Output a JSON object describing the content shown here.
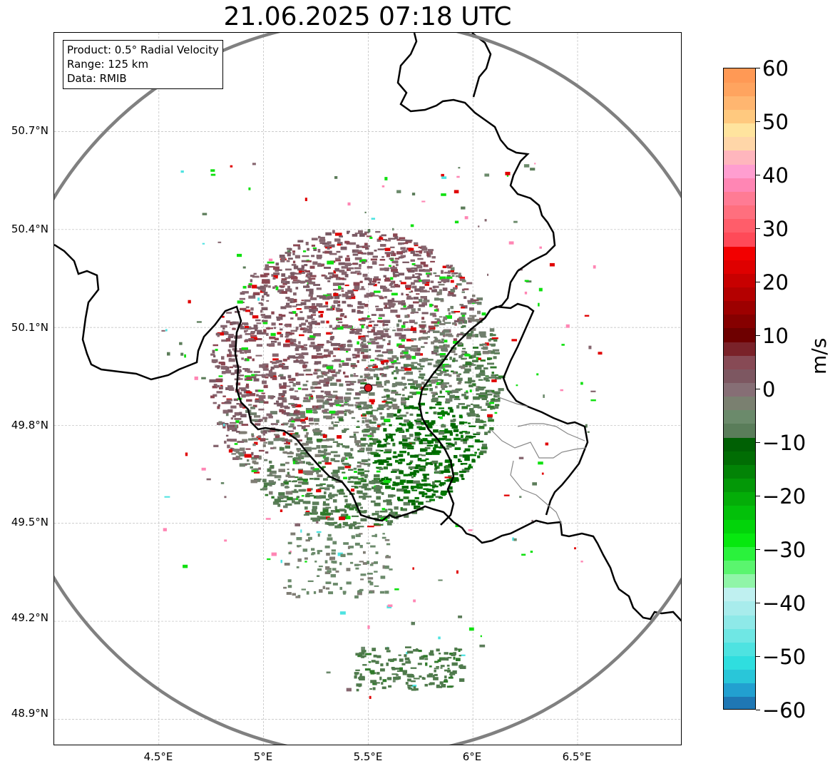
{
  "title": "21.06.2025 07:18 UTC",
  "info": {
    "product": "Product: 0.5° Radial Velocity",
    "range": "Range: 125 km",
    "data": "Data: RMIB"
  },
  "map": {
    "x_ticks": [
      "4.5°E",
      "5°E",
      "5.5°E",
      "6°E",
      "6.5°E"
    ],
    "y_ticks": [
      "50.7°N",
      "50.4°N",
      "50.1°N",
      "49.8°N",
      "49.5°N",
      "49.2°N",
      "48.9°N"
    ],
    "lon_range": [
      4.0,
      7.0
    ],
    "lat_range": [
      48.8,
      51.0
    ],
    "radar_site": {
      "lon": 5.5,
      "lat": 49.915
    },
    "range_ring_color": "#808080",
    "site_marker_color": "#e0141c"
  },
  "colorbar": {
    "label": "m/s",
    "ticks": [
      "60",
      "50",
      "40",
      "30",
      "20",
      "10",
      "0",
      "−10",
      "−20",
      "−30",
      "−40",
      "−50",
      "−60"
    ],
    "range": [
      -60,
      60
    ],
    "colors": [
      "#1f77b4",
      "#22a0d0",
      "#29c6d9",
      "#2fdedf",
      "#4ee3e1",
      "#6fe7e4",
      "#8ee9e8",
      "#a8ecec",
      "#bff0f0",
      "#90f5a8",
      "#5af56e",
      "#2af23c",
      "#07e80f",
      "#02d40a",
      "#03c00a",
      "#04ad08",
      "#039807",
      "#028306",
      "#016d04",
      "#006004",
      "#5a7d5a",
      "#6b8a6b",
      "#7a8070",
      "#866e75",
      "#7d5761",
      "#874a55",
      "#7a2229",
      "#6e0000",
      "#860000",
      "#9d0000",
      "#b40000",
      "#c80000",
      "#df0000",
      "#f20000",
      "#ff4a58",
      "#ff5d6a",
      "#ff6f7e",
      "#ff7b94",
      "#ff86b4",
      "#ff9ed0",
      "#ffb6bd",
      "#ffd6a8",
      "#ffe49e",
      "#ffc97f",
      "#ffb670",
      "#ffa45f",
      "#ff9955"
    ]
  }
}
